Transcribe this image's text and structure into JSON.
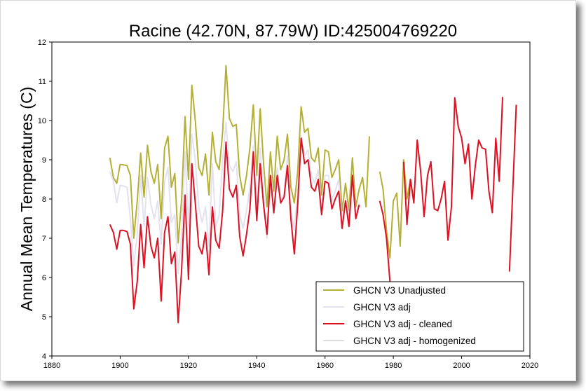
{
  "title": "Racine (42.70N, 87.79W) ID:425004769220",
  "chart_data": {
    "type": "line",
    "title": "Racine (42.70N, 87.79W) ID:425004769220",
    "ylabel": "Annual Mean Temperatures (C)",
    "xlabel": "",
    "xlim": [
      1880,
      2020
    ],
    "ylim": [
      4,
      12
    ],
    "xticks": [
      1880,
      1900,
      1920,
      1940,
      1960,
      1980,
      2000,
      2020
    ],
    "yticks": [
      4,
      5,
      6,
      7,
      8,
      9,
      10,
      11,
      12
    ],
    "legend_position": "bottom-right",
    "series": [
      {
        "name": "GHCN V3 Unadjusted",
        "color": "#b5b035",
        "points": [
          [
            1897,
            9.05
          ],
          [
            1898,
            8.55
          ],
          [
            1899,
            8.4
          ],
          [
            1900,
            8.88
          ],
          [
            1901,
            8.87
          ],
          [
            1902,
            8.85
          ],
          [
            1903,
            8.6
          ],
          [
            1904,
            7.0
          ],
          [
            1905,
            7.95
          ],
          [
            1906,
            9.17
          ],
          [
            1907,
            8.05
          ],
          [
            1908,
            9.37
          ],
          [
            1909,
            8.7
          ],
          [
            1910,
            8.4
          ],
          [
            1911,
            8.88
          ],
          [
            1912,
            7.5
          ],
          [
            1913,
            9.3
          ],
          [
            1914,
            9.6
          ],
          [
            1915,
            8.3
          ],
          [
            1916,
            8.65
          ],
          [
            1917,
            6.88
          ],
          [
            1918,
            8.0
          ],
          [
            1919,
            10.1
          ],
          [
            1920,
            8.5
          ],
          [
            1921,
            10.9
          ],
          [
            1922,
            10.0
          ],
          [
            1923,
            8.8
          ],
          [
            1924,
            8.6
          ],
          [
            1925,
            9.15
          ],
          [
            1926,
            8.1
          ],
          [
            1927,
            9.7
          ],
          [
            1928,
            8.95
          ],
          [
            1929,
            8.75
          ],
          [
            1930,
            9.7
          ],
          [
            1931,
            11.4
          ],
          [
            1932,
            10.05
          ],
          [
            1933,
            9.85
          ],
          [
            1934,
            9.9
          ],
          [
            1935,
            8.6
          ],
          [
            1936,
            8.1
          ],
          [
            1937,
            8.6
          ],
          [
            1938,
            9.3
          ],
          [
            1939,
            10.4
          ],
          [
            1940,
            8.6
          ],
          [
            1941,
            10.3
          ],
          [
            1942,
            8.9
          ],
          [
            1943,
            7.8
          ],
          [
            1944,
            9.2
          ],
          [
            1945,
            8.2
          ],
          [
            1946,
            9.6
          ],
          [
            1947,
            8.75
          ],
          [
            1948,
            9.0
          ],
          [
            1949,
            9.65
          ],
          [
            1950,
            8.3
          ],
          [
            1951,
            7.9
          ],
          [
            1952,
            8.7
          ],
          [
            1953,
            10.35
          ],
          [
            1954,
            9.7
          ],
          [
            1955,
            9.8
          ],
          [
            1956,
            9.05
          ],
          [
            1957,
            8.95
          ],
          [
            1958,
            9.3
          ],
          [
            1959,
            8.1
          ],
          [
            1960,
            9.25
          ],
          [
            1961,
            9.2
          ],
          [
            1962,
            8.55
          ],
          [
            1963,
            8.75
          ],
          [
            1964,
            9.0
          ],
          [
            1965,
            7.7
          ],
          [
            1966,
            8.4
          ],
          [
            1967,
            7.7
          ],
          [
            1968,
            9.05
          ],
          [
            1969,
            7.8
          ],
          [
            1970,
            8.25
          ],
          [
            1971,
            8.55
          ],
          [
            1972,
            7.8
          ],
          [
            1973,
            9.6
          ],
          null,
          [
            1976,
            8.7
          ],
          [
            1977,
            8.25
          ],
          [
            1978,
            7.2
          ],
          [
            1979,
            6.5
          ],
          [
            1980,
            7.95
          ],
          [
            1981,
            8.15
          ],
          [
            1982,
            6.8
          ],
          [
            1983,
            9.0
          ],
          [
            1984,
            8.0
          ],
          [
            1985,
            8.5
          ],
          [
            1986,
            7.95
          ]
        ]
      },
      {
        "name": "GHCN V3 adj",
        "color": "#e2e2f0",
        "points": [
          [
            1897,
            8.7
          ],
          [
            1898,
            8.45
          ],
          [
            1899,
            7.9
          ],
          [
            1900,
            8.35
          ],
          [
            1901,
            8.33
          ],
          [
            1902,
            8.3
          ],
          [
            1903,
            7.5
          ],
          [
            1904,
            6.3
          ],
          [
            1905,
            7.1
          ],
          [
            1906,
            8.6
          ],
          [
            1907,
            7.3
          ],
          [
            1908,
            8.55
          ],
          [
            1909,
            7.85
          ],
          [
            1910,
            7.5
          ],
          [
            1911,
            7.95
          ],
          [
            1912,
            6.85
          ],
          [
            1913,
            8.45
          ],
          [
            1914,
            8.8
          ],
          [
            1915,
            7.4
          ],
          [
            1916,
            7.6
          ],
          [
            1917,
            6.1
          ],
          [
            1918,
            7.1
          ],
          [
            1919,
            9.2
          ],
          [
            1920,
            7.3
          ],
          [
            1921,
            9.65
          ],
          [
            1922,
            9.0
          ],
          [
            1923,
            7.8
          ],
          [
            1924,
            7.4
          ],
          [
            1925,
            7.8
          ],
          [
            1926,
            6.8
          ],
          [
            1927,
            8.9
          ],
          [
            1928,
            7.3
          ],
          [
            1929,
            7.6
          ],
          [
            1930,
            9.0
          ],
          [
            1931,
            9.95
          ],
          [
            1932,
            8.85
          ],
          [
            1933,
            8.7
          ],
          [
            1934,
            8.95
          ],
          [
            1935,
            7.6
          ],
          [
            1936,
            7.25
          ],
          [
            1937,
            7.7
          ],
          [
            1938,
            8.3
          ],
          [
            1939,
            9.35
          ],
          [
            1940,
            7.7
          ],
          [
            1941,
            9.3
          ],
          [
            1942,
            8.0
          ],
          [
            1943,
            7.0
          ],
          [
            1944,
            8.5
          ],
          [
            1945,
            7.6
          ],
          [
            1946,
            8.8
          ],
          [
            1947,
            8.0
          ],
          [
            1948,
            8.1
          ],
          [
            1949,
            9.1
          ],
          [
            1950,
            7.7
          ],
          [
            1951,
            7.2
          ],
          [
            1952,
            8.2
          ],
          [
            1953,
            9.6
          ],
          [
            1954,
            9.1
          ],
          [
            1955,
            9.25
          ],
          [
            1956,
            8.6
          ],
          [
            1957,
            8.4
          ],
          [
            1958,
            8.75
          ],
          [
            1959,
            7.7
          ],
          [
            1960,
            8.6
          ],
          [
            1961,
            8.6
          ],
          [
            1962,
            8.0
          ],
          [
            1963,
            8.2
          ],
          [
            1964,
            8.5
          ],
          [
            1965,
            7.35
          ],
          [
            1966,
            8.0
          ],
          [
            1967,
            7.5
          ],
          [
            1968,
            8.6
          ],
          [
            1969,
            7.6
          ],
          [
            1970,
            7.9
          ]
        ]
      },
      {
        "name": "GHCN V3 adj - cleaned",
        "color": "#dd1122",
        "points": [
          [
            1897,
            7.35
          ],
          [
            1898,
            7.15
          ],
          [
            1899,
            6.72
          ],
          [
            1900,
            7.2
          ],
          [
            1901,
            7.2
          ],
          [
            1902,
            7.17
          ],
          [
            1903,
            6.85
          ],
          [
            1904,
            5.2
          ],
          [
            1905,
            5.9
          ],
          [
            1906,
            7.35
          ],
          [
            1907,
            6.25
          ],
          [
            1908,
            7.55
          ],
          [
            1909,
            6.8
          ],
          [
            1910,
            6.5
          ],
          [
            1911,
            7.0
          ],
          [
            1912,
            5.4
          ],
          [
            1913,
            7.15
          ],
          [
            1914,
            7.55
          ],
          [
            1915,
            6.35
          ],
          [
            1916,
            6.65
          ],
          [
            1917,
            4.85
          ],
          [
            1918,
            6.2
          ],
          [
            1919,
            8.1
          ],
          [
            1920,
            5.95
          ],
          [
            1921,
            8.9
          ],
          [
            1922,
            7.9
          ],
          [
            1923,
            6.8
          ],
          [
            1924,
            6.6
          ],
          [
            1925,
            7.15
          ],
          [
            1926,
            6.07
          ],
          [
            1927,
            7.8
          ],
          [
            1928,
            6.95
          ],
          [
            1929,
            6.75
          ],
          [
            1930,
            7.7
          ],
          [
            1931,
            9.45
          ],
          [
            1932,
            8.25
          ],
          [
            1933,
            8.05
          ],
          [
            1934,
            8.35
          ],
          [
            1935,
            7.05
          ],
          [
            1936,
            6.55
          ],
          [
            1937,
            7.1
          ],
          [
            1938,
            7.75
          ],
          [
            1939,
            9.2
          ],
          [
            1940,
            7.45
          ],
          [
            1941,
            8.9
          ],
          [
            1942,
            7.85
          ],
          [
            1943,
            7.1
          ],
          [
            1944,
            8.6
          ],
          [
            1945,
            7.65
          ],
          [
            1946,
            8.6
          ],
          [
            1947,
            7.9
          ],
          [
            1948,
            8.05
          ],
          [
            1949,
            8.85
          ],
          [
            1950,
            7.5
          ],
          [
            1951,
            6.6
          ],
          [
            1952,
            7.85
          ],
          [
            1953,
            9.55
          ],
          [
            1954,
            8.9
          ],
          [
            1955,
            9.0
          ],
          [
            1956,
            8.3
          ],
          [
            1957,
            8.2
          ],
          [
            1958,
            8.5
          ],
          [
            1959,
            7.6
          ],
          [
            1960,
            8.45
          ],
          [
            1961,
            8.4
          ],
          [
            1962,
            7.75
          ],
          [
            1963,
            8.0
          ],
          [
            1964,
            8.2
          ],
          [
            1965,
            7.25
          ],
          [
            1966,
            7.95
          ],
          [
            1967,
            7.3
          ],
          [
            1968,
            8.6
          ],
          [
            1969,
            7.5
          ],
          [
            1970,
            7.85
          ],
          null,
          [
            1976,
            7.95
          ],
          [
            1977,
            7.6
          ],
          [
            1978,
            7.0
          ],
          [
            1979,
            5.9
          ],
          null,
          [
            1983,
            8.95
          ],
          [
            1984,
            7.35
          ],
          [
            1985,
            8.5
          ],
          [
            1986,
            7.9
          ],
          [
            1987,
            9.5
          ],
          [
            1988,
            8.7
          ],
          [
            1989,
            7.55
          ],
          [
            1990,
            8.6
          ],
          [
            1991,
            8.95
          ],
          [
            1992,
            7.75
          ],
          [
            1993,
            7.7
          ],
          [
            1994,
            8.0
          ],
          [
            1995,
            8.45
          ],
          [
            1996,
            6.95
          ],
          [
            1997,
            7.8
          ],
          [
            1998,
            10.58
          ],
          [
            1999,
            9.85
          ],
          [
            2000,
            9.55
          ],
          [
            2001,
            8.9
          ],
          [
            2002,
            9.4
          ],
          [
            2003,
            8.0
          ],
          [
            2004,
            8.85
          ],
          [
            2005,
            9.5
          ],
          [
            2006,
            9.3
          ],
          [
            2007,
            9.27
          ],
          [
            2008,
            8.2
          ],
          [
            2009,
            7.65
          ],
          [
            2010,
            9.55
          ],
          [
            2011,
            8.45
          ],
          [
            2012,
            10.6
          ],
          null,
          [
            2014,
            6.15
          ],
          [
            2016,
            10.4
          ]
        ]
      },
      {
        "name": "GHCN V3 adj - homogenized",
        "color": "#dcdcdc",
        "points": []
      }
    ]
  }
}
